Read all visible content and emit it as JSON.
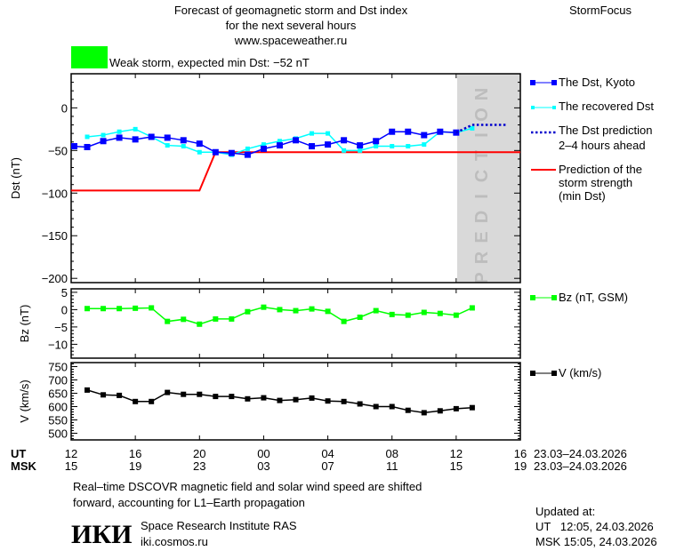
{
  "header": {
    "title_lines": [
      "Forecast of geomagnetic storm and Dst index",
      "for the next several hours",
      "www.spaceweather.ru"
    ],
    "brand": "StormFocus",
    "status_color": "#00ff00",
    "status_text": "Weak storm, expected min Dst: −52 nT"
  },
  "prediction_label": "PREDICTION",
  "legend": {
    "dst_kyoto": "The Dst, Kyoto",
    "recovered": "The recovered Dst",
    "prediction_lines": [
      "The Dst prediction",
      "2–4 hours ahead"
    ],
    "min_dst_lines": [
      "Prediction of the",
      "storm strength",
      "(min Dst)"
    ],
    "bz": "Bz (nT, GSM)",
    "v": "V (km/s)"
  },
  "xaxis": {
    "ut_label": "UT",
    "msk_label": "MSK",
    "ut_ticks": [
      "12",
      "16",
      "20",
      "00",
      "04",
      "08",
      "12",
      "16"
    ],
    "msk_ticks": [
      "15",
      "19",
      "23",
      "03",
      "07",
      "11",
      "15",
      "19"
    ],
    "date_range": "23.03–24.03.2026"
  },
  "footer": {
    "note_lines": [
      "Real–time DSCOVR magnetic field and solar wind speed are shifted",
      "forward, accounting for L1–Earth propagation"
    ],
    "logo_text": "IKI",
    "institute": "Space Research Institute RAS",
    "site": "iki.cosmos.ru",
    "updated_label": "Updated at:",
    "updated_ut": "UT   12:05, 24.03.2026",
    "updated_msk": "MSK 15:05, 24.03.2026"
  },
  "chart_data": [
    {
      "type": "line",
      "ylabel": "Dst (nT)",
      "ylim": [
        -205,
        40
      ],
      "yticks": [
        0,
        -50,
        -100,
        -150,
        -200
      ],
      "x_unit": "hours UT from 12 UT 23.03",
      "xlim": [
        12,
        40
      ],
      "colors": {
        "dst_kyoto": "#0000ff",
        "recovered": "#00ffff",
        "prediction": "#0000cc",
        "min_dst": "#ff0000",
        "prediction_zone": "#d9d9d9"
      },
      "series": [
        {
          "name": "The Dst, Kyoto",
          "x": [
            12,
            13,
            14,
            15,
            16,
            17,
            18,
            19,
            20,
            21,
            22,
            23,
            24,
            25,
            26,
            27,
            28,
            29,
            30,
            31,
            32,
            33,
            34,
            35,
            36
          ],
          "y": [
            -45,
            -46,
            -39,
            -35,
            -37,
            -34,
            -35,
            -38,
            -42,
            -52,
            -53,
            -55,
            -48,
            -44,
            -38,
            -45,
            -43,
            -38,
            -44,
            -39,
            -28,
            -28,
            -32,
            -28,
            -29
          ]
        },
        {
          "name": "The recovered Dst",
          "x": [
            13,
            14,
            15,
            16,
            17,
            18,
            19,
            20,
            21,
            22,
            23,
            24,
            25,
            26,
            27,
            28,
            29,
            30,
            31,
            32,
            33,
            34,
            35,
            36,
            37
          ],
          "y": [
            -34,
            -32,
            -28,
            -25,
            -34,
            -44,
            -45,
            -52,
            -52,
            -55,
            -48,
            -43,
            -39,
            -36,
            -30,
            -30,
            -50,
            -50,
            -45,
            -45,
            -45,
            -43,
            -28,
            -29,
            -24
          ]
        },
        {
          "name": "The Dst prediction 2-4 hours ahead",
          "x": [
            36,
            37,
            39.2
          ],
          "y": [
            -29,
            -20,
            -20
          ]
        },
        {
          "name": "Prediction of the storm strength (min Dst)",
          "x": [
            12,
            20,
            21,
            40
          ],
          "y": [
            -97,
            -97,
            -52,
            -52
          ]
        }
      ],
      "prediction_zone_start": 36
    },
    {
      "type": "line",
      "ylabel": "Bz (nT)",
      "ylim": [
        -14,
        6
      ],
      "yticks": [
        5,
        0,
        -5,
        -10
      ],
      "color": "#00ff00",
      "series": [
        {
          "name": "Bz (nT, GSM)",
          "x": [
            13,
            14,
            15,
            16,
            17,
            18,
            19,
            20,
            21,
            22,
            23,
            24,
            25,
            26,
            27,
            28,
            29,
            30,
            31,
            32,
            33,
            34,
            35,
            36,
            37
          ],
          "y": [
            0.3,
            0.3,
            0.3,
            0.4,
            0.5,
            -3.4,
            -2.8,
            -4.2,
            -2.7,
            -2.7,
            -0.6,
            0.7,
            0,
            -0.3,
            0.2,
            -0.5,
            -3.4,
            -2.2,
            -0.3,
            -1.4,
            -1.6,
            -0.8,
            -1.1,
            -1.6,
            0.5
          ]
        }
      ]
    },
    {
      "type": "line",
      "ylabel": "V (km/s)",
      "ylim": [
        475,
        765
      ],
      "yticks": [
        750,
        700,
        650,
        600,
        550,
        500
      ],
      "color": "#000000",
      "series": [
        {
          "name": "V (km/s)",
          "x": [
            13,
            14,
            15,
            16,
            17,
            18,
            19,
            20,
            21,
            22,
            23,
            24,
            25,
            26,
            27,
            28,
            29,
            30,
            31,
            32,
            33,
            34,
            35,
            36,
            37
          ],
          "y": [
            662,
            644,
            642,
            619,
            619,
            653,
            646,
            646,
            638,
            638,
            629,
            633,
            623,
            626,
            632,
            621,
            619,
            610,
            600,
            600,
            586,
            577,
            584,
            592,
            596
          ]
        }
      ]
    }
  ]
}
